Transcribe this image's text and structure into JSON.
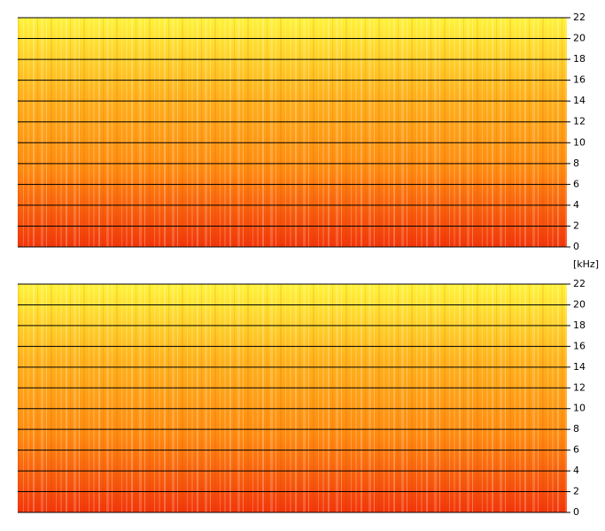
{
  "chart_data": [
    {
      "type": "spectrogram",
      "ylim": [
        0,
        22
      ],
      "yticks": [
        0,
        2,
        4,
        6,
        8,
        10,
        12,
        14,
        16,
        18,
        20,
        22
      ],
      "grid": true,
      "colors": [
        "#fff33a",
        "#ffb21c",
        "#ff8a10",
        "#f2360a"
      ]
    },
    {
      "type": "spectrogram",
      "ylabel": "[kHz]",
      "ylim": [
        0,
        22
      ],
      "yticks": [
        0,
        2,
        4,
        6,
        8,
        10,
        12,
        14,
        16,
        18,
        20,
        22
      ],
      "grid": true,
      "colors": [
        "#fff33a",
        "#ffb21c",
        "#ff8a10",
        "#f2360a"
      ]
    }
  ]
}
